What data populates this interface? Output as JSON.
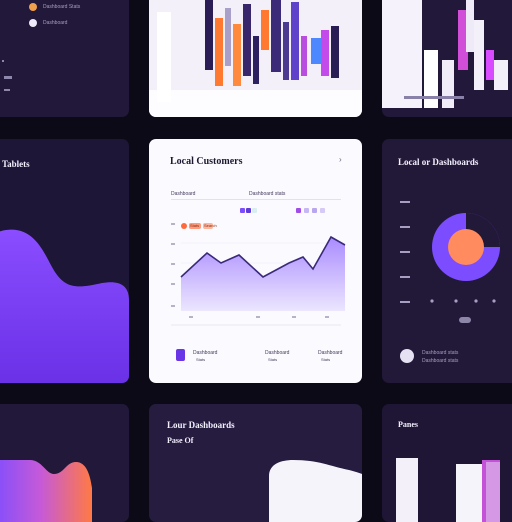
{
  "top_left": {
    "item1": "Dashboard Stats",
    "item2": "Dashboard"
  },
  "left_card": {
    "title": "Tablets"
  },
  "center_card": {
    "title": "Local Customers",
    "menu_icon": "chevron-right-icon",
    "col_a": "Dashboard",
    "col_b": "Dashboard stats",
    "filter_a": "Stats",
    "filter_b": "Search",
    "footer": [
      {
        "label": "Dashboard",
        "sub": "Stats"
      },
      {
        "label": "Dashboard",
        "sub": "Stats"
      },
      {
        "label": "Dashboard",
        "sub": "Stats"
      }
    ]
  },
  "right_card": {
    "title": "Local or Dashboards",
    "legend_text": "Dashboard stats",
    "legend_sub": "Dashboard stats"
  },
  "bottom_center": {
    "title": "Lour Dashboards",
    "subtitle": "Pase Of"
  },
  "bottom_right": {
    "title": "Panes"
  },
  "colors": {
    "accent_purple": "#7c4dff",
    "accent_orange": "#ff7a45",
    "accent_magenta": "#d84bff"
  }
}
